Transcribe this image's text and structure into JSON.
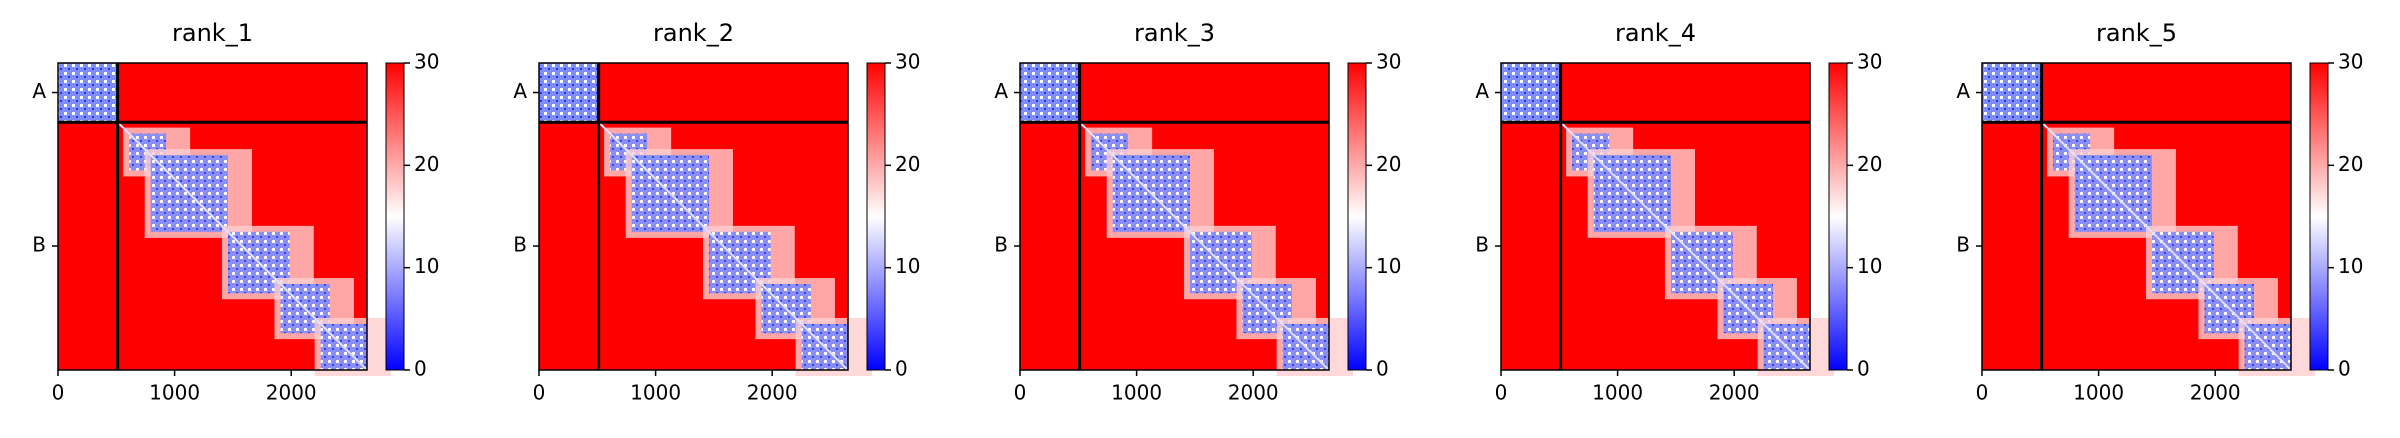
{
  "chart_data": [
    {
      "type": "heatmap",
      "title": "rank_1",
      "xlim": [
        0,
        2650
      ],
      "xticks": [
        0,
        1000,
        2000
      ],
      "ylim": [
        2650,
        0
      ],
      "yticks": [
        {
          "value": 255,
          "label": "A"
        },
        {
          "value": 1580,
          "label": "B"
        }
      ],
      "clim": [
        0,
        30
      ],
      "cticks": [
        0,
        10,
        20,
        30
      ],
      "colormap": [
        "#0000ff",
        "#ffffff",
        "#ff0000"
      ]
    },
    {
      "type": "heatmap",
      "title": "rank_2",
      "xlim": [
        0,
        2650
      ],
      "xticks": [
        0,
        1000,
        2000
      ],
      "ylim": [
        2650,
        0
      ],
      "yticks": [
        {
          "value": 255,
          "label": "A"
        },
        {
          "value": 1580,
          "label": "B"
        }
      ],
      "clim": [
        0,
        30
      ],
      "cticks": [
        0,
        10,
        20,
        30
      ],
      "colormap": [
        "#0000ff",
        "#ffffff",
        "#ff0000"
      ]
    },
    {
      "type": "heatmap",
      "title": "rank_3",
      "xlim": [
        0,
        2650
      ],
      "xticks": [
        0,
        1000,
        2000
      ],
      "ylim": [
        2650,
        0
      ],
      "yticks": [
        {
          "value": 255,
          "label": "A"
        },
        {
          "value": 1580,
          "label": "B"
        }
      ],
      "clim": [
        0,
        30
      ],
      "cticks": [
        0,
        10,
        20,
        30
      ],
      "colormap": [
        "#0000ff",
        "#ffffff",
        "#ff0000"
      ]
    },
    {
      "type": "heatmap",
      "title": "rank_4",
      "xlim": [
        0,
        2650
      ],
      "xticks": [
        0,
        1000,
        2000
      ],
      "ylim": [
        2650,
        0
      ],
      "yticks": [
        {
          "value": 255,
          "label": "A"
        },
        {
          "value": 1580,
          "label": "B"
        }
      ],
      "clim": [
        0,
        30
      ],
      "cticks": [
        0,
        10,
        20,
        30
      ],
      "colormap": [
        "#0000ff",
        "#ffffff",
        "#ff0000"
      ]
    },
    {
      "type": "heatmap",
      "title": "rank_5",
      "xlim": [
        0,
        2650
      ],
      "xticks": [
        0,
        1000,
        2000
      ],
      "ylim": [
        2650,
        0
      ],
      "yticks": [
        {
          "value": 255,
          "label": "A"
        },
        {
          "value": 1580,
          "label": "B"
        }
      ],
      "clim": [
        0,
        30
      ],
      "cticks": [
        0,
        10,
        20,
        30
      ],
      "colormap": [
        "#0000ff",
        "#ffffff",
        "#ff0000"
      ]
    }
  ]
}
